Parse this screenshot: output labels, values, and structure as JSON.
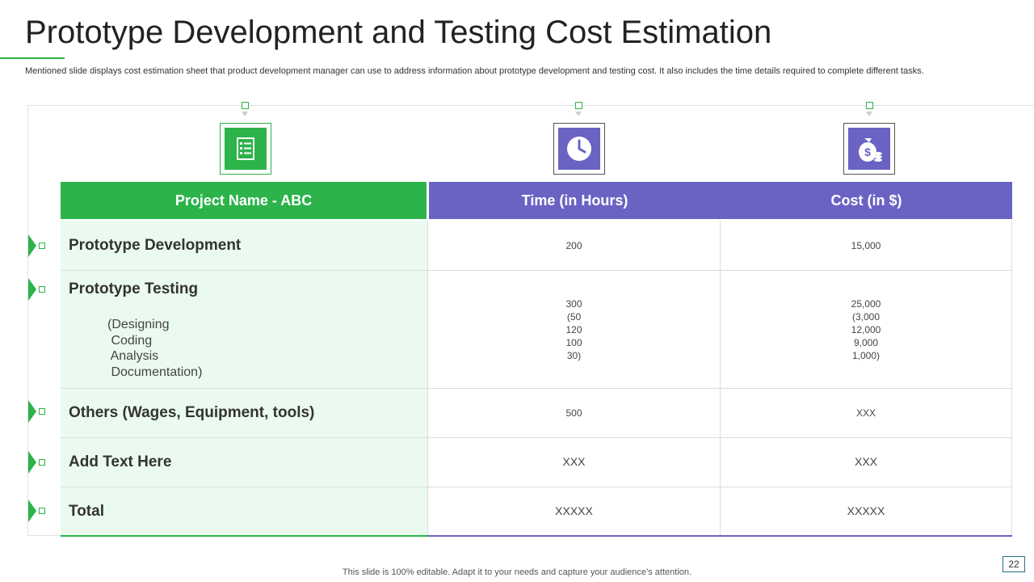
{
  "title": "Prototype Development and Testing Cost Estimation",
  "subtitle": "Mentioned slide displays cost estimation sheet that product development manager can use to address information about prototype development and testing cost. It also includes the time details required to complete different tasks.",
  "colors": {
    "green": "#2cb34a",
    "purple": "#6a63c4",
    "light_green": "#eafaef"
  },
  "icons": [
    "checklist-icon",
    "clock-icon",
    "money-bag-icon"
  ],
  "table": {
    "headers": [
      "Project Name - ABC",
      "Time (in Hours)",
      "Cost (in $)"
    ],
    "rows": [
      {
        "name": "Prototype Development",
        "sub": "",
        "time": "200",
        "cost": "15,000"
      },
      {
        "name": "Prototype Testing",
        "sub": "(Designing\n Coding\n Analysis\n Documentation)",
        "time": "300\n(50\n120\n100\n30)",
        "cost": "25,000\n(3,000\n12,000\n9,000\n1,000)"
      },
      {
        "name": "Others (Wages, Equipment, tools)",
        "sub": "",
        "time": "500",
        "cost": "XXX"
      },
      {
        "name": "Add Text Here",
        "sub": "",
        "time": "XXX",
        "cost": "XXX"
      },
      {
        "name": "Total",
        "sub": "",
        "time": "XXXXX",
        "cost": "XXXXX"
      }
    ]
  },
  "footer": "This slide is 100% editable. Adapt it to your needs and capture your audience’s attention.",
  "page_number": "22"
}
